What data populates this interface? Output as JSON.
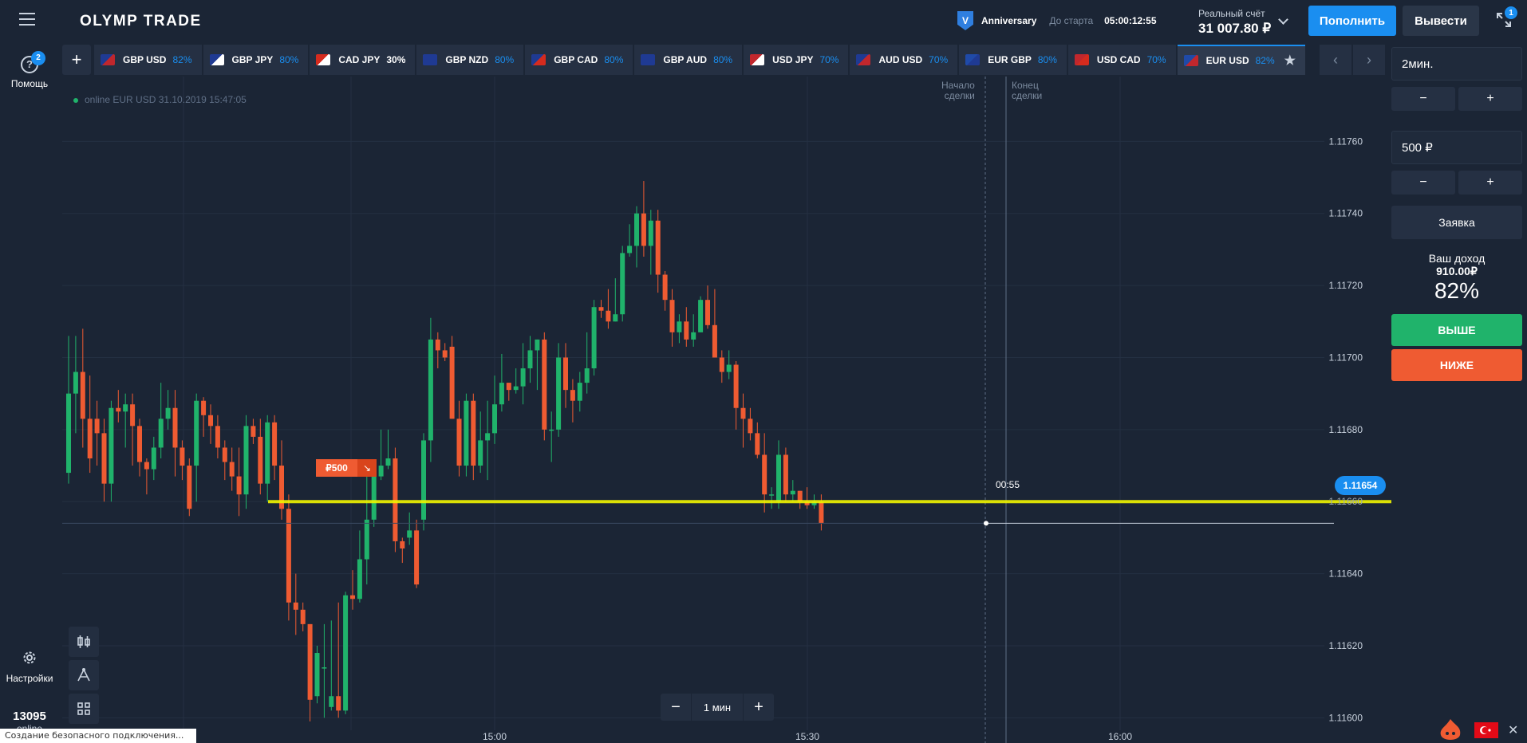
{
  "app": {
    "logo": "OLYMP TRADE"
  },
  "promo": {
    "badge": "V",
    "name": "Anniversary",
    "until_label": "До старта",
    "timer": "05:00:12:55"
  },
  "account": {
    "label": "Реальный счёт",
    "balance": "31 007.80 ₽"
  },
  "header": {
    "deposit": "Пополнить",
    "withdraw": "Вывести",
    "fullscreen_badge": "1"
  },
  "sidebar": {
    "help_label": "Помощь",
    "help_icon": "?",
    "help_badge": "2",
    "settings_label": "Настройки",
    "counter_value": "13095",
    "counter_label": "online"
  },
  "tabs": {
    "add_label": "+",
    "items": [
      {
        "pair": "GBP USD",
        "pct": "82%",
        "flags": "GB-US"
      },
      {
        "pair": "GBP JPY",
        "pct": "80%",
        "flags": "GB-JP"
      },
      {
        "pair": "CAD JPY",
        "pct": "30%",
        "flags": "CA-JP",
        "low": true
      },
      {
        "pair": "GBP NZD",
        "pct": "80%",
        "flags": "GB-NZ"
      },
      {
        "pair": "GBP CAD",
        "pct": "80%",
        "flags": "GB-CA"
      },
      {
        "pair": "GBP AUD",
        "pct": "80%",
        "flags": "GB-AU"
      },
      {
        "pair": "USD JPY",
        "pct": "70%",
        "flags": "US-JP"
      },
      {
        "pair": "AUD USD",
        "pct": "70%",
        "flags": "AU-US"
      },
      {
        "pair": "EUR GBP",
        "pct": "80%",
        "flags": "EU-GB"
      },
      {
        "pair": "USD CAD",
        "pct": "70%",
        "flags": "US-CA"
      },
      {
        "pair": "EUR USD",
        "pct": "82%",
        "flags": "EU-US",
        "active": true
      }
    ]
  },
  "chart": {
    "status": "online EUR USD 31.10.2019 15:47:05",
    "deal_start": [
      "Начало",
      "сделки"
    ],
    "deal_end": [
      "Конец",
      "сделки"
    ],
    "current_price": "1.11654",
    "countdown": "00:55",
    "order_amount": "₽500",
    "order_arrow": "↘",
    "strike_label": "1.11660",
    "y_ticks": [
      "1.11760",
      "1.11740",
      "1.11720",
      "1.11700",
      "1.11680",
      "1.11660",
      "1.11640",
      "1.11620",
      "1.11600"
    ],
    "x_ticks": [
      "15:00",
      "15:30",
      "16:00"
    ],
    "zoom_value": "1 мин",
    "colors": {
      "up": "#20b36b",
      "down": "#ef5b32",
      "strike": "#f1f500"
    }
  },
  "chart_data": {
    "type": "candlestick",
    "ylim": [
      1.11593,
      1.11778
    ],
    "candles": [
      [
        1.11668,
        1.1169,
        1.11706,
        1.11665
      ],
      [
        1.1169,
        1.11696,
        1.11706,
        1.11679
      ],
      [
        1.11696,
        1.11683,
        1.11708,
        1.11675
      ],
      [
        1.11683,
        1.11672,
        1.11695,
        1.11668
      ],
      [
        1.11683,
        1.11679,
        1.11688,
        1.1167
      ],
      [
        1.11679,
        1.11665,
        1.11683,
        1.1166
      ],
      [
        1.11665,
        1.11686,
        1.11688,
        1.1166
      ],
      [
        1.11686,
        1.11685,
        1.11691,
        1.11682
      ],
      [
        1.11685,
        1.11687,
        1.1169,
        1.11675
      ],
      [
        1.11687,
        1.11681,
        1.1169,
        1.1167
      ],
      [
        1.11681,
        1.11671,
        1.11683,
        1.11667
      ],
      [
        1.11671,
        1.11669,
        1.11672,
        1.11662
      ],
      [
        1.11669,
        1.11675,
        1.11678,
        1.11666
      ],
      [
        1.11675,
        1.11683,
        1.11693,
        1.11672
      ],
      [
        1.11683,
        1.11686,
        1.11691,
        1.1168
      ],
      [
        1.11686,
        1.11675,
        1.11691,
        1.11667
      ],
      [
        1.11675,
        1.1167,
        1.11677,
        1.11666
      ],
      [
        1.1167,
        1.11658,
        1.11672,
        1.11656
      ],
      [
        1.1167,
        1.11688,
        1.1169,
        1.1166
      ],
      [
        1.11688,
        1.11684,
        1.11689,
        1.11678
      ],
      [
        1.11684,
        1.11681,
        1.11687,
        1.11676
      ],
      [
        1.11681,
        1.11675,
        1.11684,
        1.11672
      ],
      [
        1.11675,
        1.11671,
        1.11677,
        1.11666
      ],
      [
        1.11671,
        1.11667,
        1.11675,
        1.11663
      ],
      [
        1.11667,
        1.11662,
        1.11675,
        1.11656
      ],
      [
        1.11662,
        1.11681,
        1.11684,
        1.11658
      ],
      [
        1.11681,
        1.11678,
        1.11683,
        1.11676
      ],
      [
        1.11678,
        1.11665,
        1.11683,
        1.11662
      ],
      [
        1.11665,
        1.11682,
        1.11684,
        1.1166
      ],
      [
        1.11682,
        1.1167,
        1.11684,
        1.11666
      ],
      [
        1.1167,
        1.11658,
        1.11677,
        1.11655
      ],
      [
        1.11658,
        1.11632,
        1.11662,
        1.11627
      ],
      [
        1.11632,
        1.1163,
        1.1164,
        1.11623
      ],
      [
        1.1163,
        1.11626,
        1.11632,
        1.11624
      ],
      [
        1.11626,
        1.11605,
        1.11626,
        1.11599
      ],
      [
        1.11606,
        1.11618,
        1.1162,
        1.11604
      ],
      [
        1.11614,
        1.11614,
        1.11626,
        1.116
      ],
      [
        1.11603,
        1.11606,
        1.11627,
        1.11602
      ],
      [
        1.11606,
        1.11602,
        1.11632,
        1.116
      ],
      [
        1.11602,
        1.11634,
        1.11635,
        1.11601
      ],
      [
        1.11634,
        1.11633,
        1.11641,
        1.1163
      ],
      [
        1.11633,
        1.11644,
        1.11652,
        1.11632
      ],
      [
        1.11644,
        1.11655,
        1.1167,
        1.11637
      ],
      [
        1.11655,
        1.11667,
        1.11669,
        1.11653
      ],
      [
        1.11667,
        1.1167,
        1.1168,
        1.11666
      ],
      [
        1.1167,
        1.11672,
        1.1168,
        1.11669
      ],
      [
        1.11672,
        1.11649,
        1.11675,
        1.11646
      ],
      [
        1.11649,
        1.11647,
        1.1165,
        1.11643
      ],
      [
        1.1165,
        1.11652,
        1.11657,
        1.11648
      ],
      [
        1.11652,
        1.11637,
        1.11655,
        1.11636
      ],
      [
        1.11655,
        1.11677,
        1.11679,
        1.11652
      ],
      [
        1.11677,
        1.11705,
        1.11711,
        1.11671
      ],
      [
        1.11705,
        1.11702,
        1.11707,
        1.11697
      ],
      [
        1.11702,
        1.117,
        1.11704,
        1.11699
      ],
      [
        1.11703,
        1.11683,
        1.11706,
        1.11683
      ],
      [
        1.11683,
        1.1167,
        1.11688,
        1.11667
      ],
      [
        1.1167,
        1.11688,
        1.1169,
        1.11667
      ],
      [
        1.11688,
        1.1167,
        1.1169,
        1.11666
      ],
      [
        1.1167,
        1.11677,
        1.11685,
        1.11668
      ],
      [
        1.11677,
        1.11679,
        1.11688,
        1.11666
      ],
      [
        1.11679,
        1.11687,
        1.11695,
        1.11676
      ],
      [
        1.11687,
        1.11693,
        1.11701,
        1.11685
      ],
      [
        1.11693,
        1.11691,
        1.11693,
        1.11688
      ],
      [
        1.11691,
        1.11692,
        1.11697,
        1.1169
      ],
      [
        1.11692,
        1.11697,
        1.11704,
        1.11687
      ],
      [
        1.11697,
        1.11702,
        1.11706,
        1.11693
      ],
      [
        1.11702,
        1.11705,
        1.11705,
        1.11691
      ],
      [
        1.11705,
        1.1168,
        1.11707,
        1.11677
      ],
      [
        1.1168,
        1.1168,
        1.11685,
        1.11671
      ],
      [
        1.1168,
        1.117,
        1.11704,
        1.11678
      ],
      [
        1.117,
        1.11691,
        1.11704,
        1.11686
      ],
      [
        1.11691,
        1.11688,
        1.11694,
        1.11682
      ],
      [
        1.11688,
        1.11693,
        1.11696,
        1.11685
      ],
      [
        1.11693,
        1.11697,
        1.11707,
        1.1169
      ],
      [
        1.11697,
        1.11714,
        1.11716,
        1.11695
      ],
      [
        1.11714,
        1.11713,
        1.11716,
        1.11711
      ],
      [
        1.11713,
        1.1171,
        1.11719,
        1.11708
      ],
      [
        1.1171,
        1.11712,
        1.11722,
        1.1171
      ],
      [
        1.11712,
        1.11729,
        1.11731,
        1.1171
      ],
      [
        1.11729,
        1.11731,
        1.11737,
        1.11728
      ],
      [
        1.11731,
        1.1174,
        1.11742,
        1.11725
      ],
      [
        1.1174,
        1.11731,
        1.11749,
        1.11728
      ],
      [
        1.11731,
        1.11738,
        1.11741,
        1.11723
      ],
      [
        1.11738,
        1.11723,
        1.11741,
        1.11718
      ],
      [
        1.11723,
        1.11716,
        1.11724,
        1.11713
      ],
      [
        1.11716,
        1.11707,
        1.11719,
        1.11703
      ],
      [
        1.11707,
        1.1171,
        1.11712,
        1.11704
      ],
      [
        1.1171,
        1.11705,
        1.11714,
        1.11703
      ],
      [
        1.11705,
        1.11707,
        1.11712,
        1.11703
      ],
      [
        1.11707,
        1.11716,
        1.11717,
        1.11707
      ],
      [
        1.11716,
        1.11709,
        1.1172,
        1.11708
      ],
      [
        1.11709,
        1.117,
        1.11719,
        1.117
      ],
      [
        1.117,
        1.11696,
        1.11702,
        1.11693
      ],
      [
        1.11696,
        1.11698,
        1.11702,
        1.11694
      ],
      [
        1.11698,
        1.11686,
        1.11699,
        1.1168
      ],
      [
        1.11686,
        1.11683,
        1.1169,
        1.11675
      ],
      [
        1.11683,
        1.11679,
        1.11686,
        1.11677
      ],
      [
        1.11679,
        1.11673,
        1.11682,
        1.11672
      ],
      [
        1.11673,
        1.11662,
        1.11679,
        1.11657
      ],
      [
        1.11662,
        1.11662,
        1.11664,
        1.11658
      ],
      [
        1.1166,
        1.11673,
        1.11677,
        1.11658
      ],
      [
        1.11673,
        1.11662,
        1.11675,
        1.1166
      ],
      [
        1.11662,
        1.11663,
        1.11666,
        1.1166
      ],
      [
        1.11663,
        1.1166,
        1.11663,
        1.11658
      ],
      [
        1.1166,
        1.11659,
        1.11664,
        1.11658
      ],
      [
        1.11659,
        1.1166,
        1.11662,
        1.11658
      ],
      [
        1.1166,
        1.11654,
        1.11662,
        1.11652
      ]
    ]
  },
  "panel": {
    "duration": "2мин.",
    "amount": "500 ₽",
    "minus": "−",
    "plus": "+",
    "order": "Заявка",
    "income_label": "Ваш доход",
    "income_amount": "910.00₽",
    "income_pct": "82%",
    "up": "ВЫШЕ",
    "down": "НИЖЕ"
  },
  "browser_status": "Создание безопасного подключения..."
}
